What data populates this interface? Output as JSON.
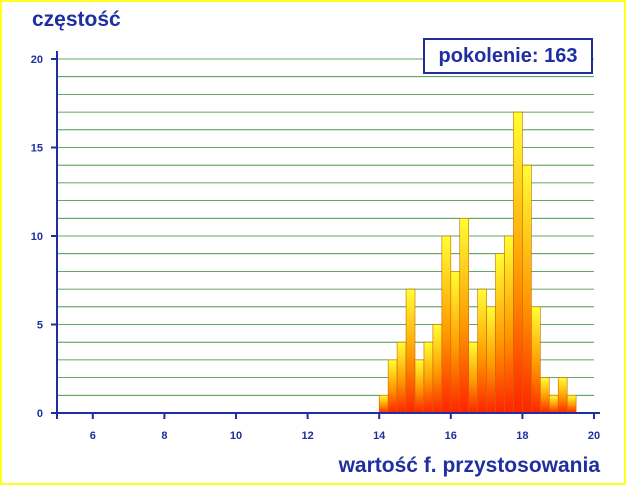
{
  "chart_data": {
    "type": "bar",
    "ylabel": "częstość",
    "xlabel": "wartość f. przystosowania",
    "annotation": {
      "label": "pokolenie:",
      "value": "163"
    },
    "xlim": [
      5,
      20
    ],
    "ylim": [
      0,
      20
    ],
    "x_ticks": [
      6,
      8,
      10,
      12,
      14,
      16,
      18,
      20
    ],
    "y_ticks": [
      0,
      5,
      10,
      15,
      20
    ],
    "grid": "horizontal",
    "bin_width": 0.25,
    "bins": [
      {
        "x": 14.0,
        "count": 1
      },
      {
        "x": 14.25,
        "count": 3
      },
      {
        "x": 14.5,
        "count": 4
      },
      {
        "x": 14.75,
        "count": 7
      },
      {
        "x": 15.0,
        "count": 3
      },
      {
        "x": 15.25,
        "count": 4
      },
      {
        "x": 15.5,
        "count": 5
      },
      {
        "x": 15.75,
        "count": 10
      },
      {
        "x": 16.0,
        "count": 8
      },
      {
        "x": 16.25,
        "count": 11
      },
      {
        "x": 16.5,
        "count": 4
      },
      {
        "x": 16.75,
        "count": 7
      },
      {
        "x": 17.0,
        "count": 6
      },
      {
        "x": 17.25,
        "count": 9
      },
      {
        "x": 17.5,
        "count": 10
      },
      {
        "x": 17.75,
        "count": 17
      },
      {
        "x": 18.0,
        "count": 14
      },
      {
        "x": 18.25,
        "count": 6
      },
      {
        "x": 18.5,
        "count": 2
      },
      {
        "x": 18.75,
        "count": 1
      },
      {
        "x": 19.0,
        "count": 2
      },
      {
        "x": 19.25,
        "count": 1
      }
    ],
    "colors": {
      "frame": "#FFFF22",
      "text": "#1F2FA0",
      "grid": "#2E8B2E",
      "bar_top": "#FFFF33",
      "bar_bottom": "#FF2200",
      "bar_edge": "#CC6600"
    }
  }
}
